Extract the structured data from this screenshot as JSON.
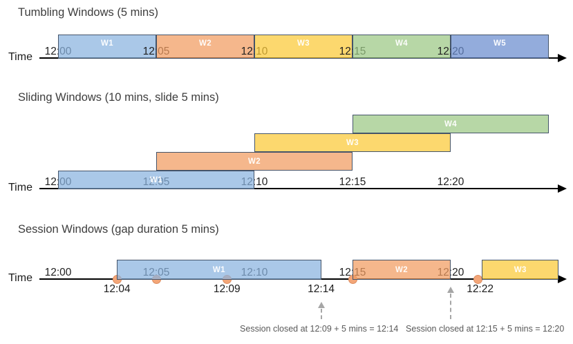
{
  "diagram": {
    "axis_label": "Time",
    "sections": [
      {
        "id": "tumbling",
        "title": "Tumbling Windows (5 mins)",
        "ticks": [
          {
            "label": "12:00",
            "min": 0
          },
          {
            "label": "12:05",
            "min": 5
          },
          {
            "label": "12:10",
            "min": 10
          },
          {
            "label": "12:15",
            "min": 15
          },
          {
            "label": "12:20",
            "min": 20
          }
        ],
        "windows": [
          {
            "label": "W1",
            "start_min": 0,
            "end_min": 5,
            "row": 0,
            "color": "blue"
          },
          {
            "label": "W2",
            "start_min": 5,
            "end_min": 10,
            "row": 0,
            "color": "orange"
          },
          {
            "label": "W3",
            "start_min": 10,
            "end_min": 15,
            "row": 0,
            "color": "yellow"
          },
          {
            "label": "W4",
            "start_min": 15,
            "end_min": 20,
            "row": 0,
            "color": "green"
          },
          {
            "label": "W5",
            "start_min": 20,
            "end_min": 25,
            "row": 0,
            "color": "blue2"
          }
        ]
      },
      {
        "id": "sliding",
        "title": "Sliding Windows (10 mins, slide 5 mins)",
        "ticks": [
          {
            "label": "12:00",
            "min": 0
          },
          {
            "label": "12:05",
            "min": 5
          },
          {
            "label": "12:10",
            "min": 10
          },
          {
            "label": "12:15",
            "min": 15
          },
          {
            "label": "12:20",
            "min": 20
          }
        ],
        "windows": [
          {
            "label": "W1",
            "start_min": 0,
            "end_min": 10,
            "row": 0,
            "color": "blue"
          },
          {
            "label": "W2",
            "start_min": 5,
            "end_min": 15,
            "row": 1,
            "color": "orange"
          },
          {
            "label": "W3",
            "start_min": 10,
            "end_min": 20,
            "row": 2,
            "color": "yellow"
          },
          {
            "label": "W4",
            "start_min": 15,
            "end_min": 25,
            "row": 3,
            "color": "green"
          }
        ]
      },
      {
        "id": "session",
        "title": "Session Windows (gap duration 5 mins)",
        "ticks": [
          {
            "label": "12:00",
            "min": 0
          },
          {
            "label": "12:05",
            "min": 5
          },
          {
            "label": "12:10",
            "min": 10
          },
          {
            "label": "12:15",
            "min": 15
          },
          {
            "label": "12:20",
            "min": 20
          }
        ],
        "windows": [
          {
            "label": "W1",
            "start_min": 3,
            "end_min": 13.4,
            "row": 0,
            "color": "blue"
          },
          {
            "label": "W2",
            "start_min": 15,
            "end_min": 20,
            "row": 0,
            "color": "orange"
          },
          {
            "label": "W3",
            "start_min": 21.6,
            "end_min": 25.5,
            "row": 0,
            "color": "yellow"
          }
        ],
        "events": [
          {
            "min": 3
          },
          {
            "min": 5
          },
          {
            "min": 8.6
          },
          {
            "min": 15
          },
          {
            "min": 21.4
          }
        ],
        "event_labels": [
          {
            "label": "12:04",
            "min": 3
          },
          {
            "label": "12:09",
            "min": 8.6
          },
          {
            "label": "12:14",
            "min": 13.4
          },
          {
            "label": "12:22",
            "min": 21.5
          }
        ],
        "callouts": [
          {
            "text": "Session closed at 12:09 + 5 mins = 12:14",
            "arrow_min": 13.4,
            "text_min": 13.3,
            "size": "short"
          },
          {
            "text": "Session closed at 12:15 + 5 mins = 12:20",
            "arrow_min": 20,
            "text_min": 21.75,
            "size": "tall"
          }
        ]
      }
    ]
  },
  "colors": {
    "blue": "#89b3df",
    "orange": "#f19b5f",
    "yellow": "#fbc936",
    "green": "#9bc783",
    "blue2": "#698cce",
    "window_border": "#44546a",
    "window_fill_alpha": "0.72",
    "axis": "#000000",
    "tick_text": "#1f1f1f",
    "window_label_text": "#ffffff",
    "dot_fill": "#f3a678",
    "dot_border": "#dd8d60",
    "callout_text": "#595959",
    "callout_arrow": "#a6a6a6",
    "title_text": "#3d3d3d"
  }
}
